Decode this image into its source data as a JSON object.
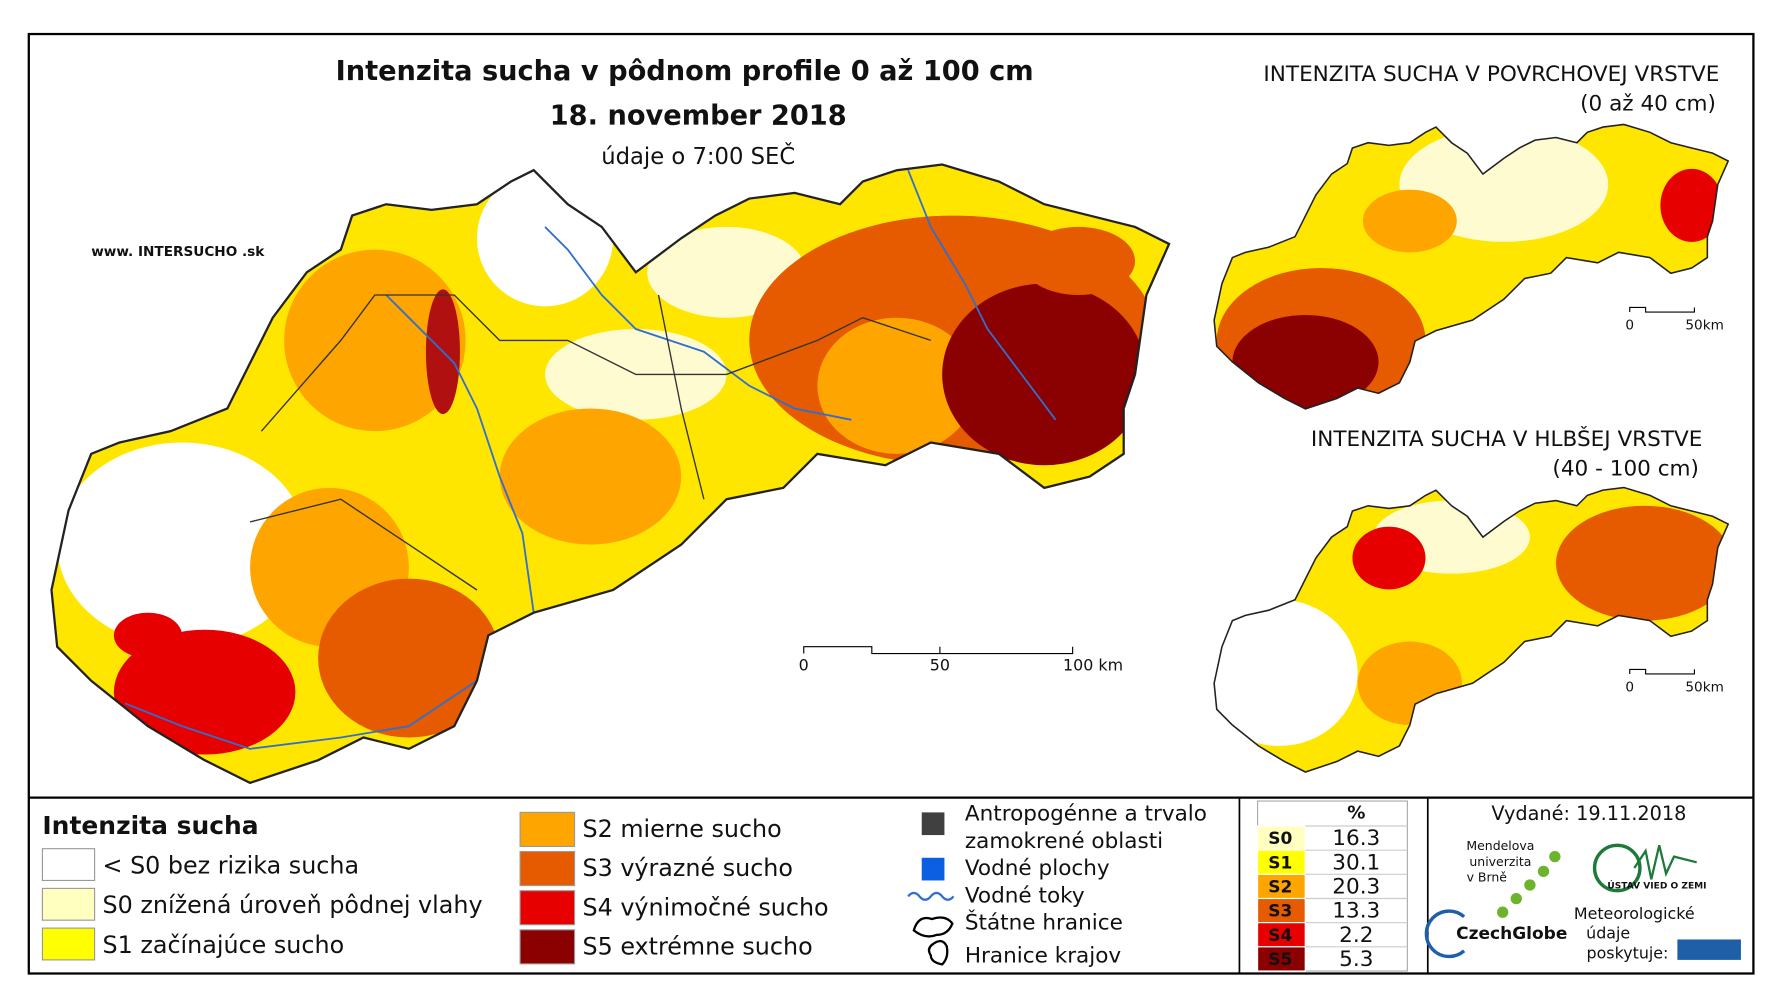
{
  "header": {
    "title": "Intenzita sucha v pôdnom profile 0 až 100 cm",
    "date": "18. november 2018",
    "time": "údaje o 7:00 SEČ"
  },
  "website": "www. INTERSUCHO .sk",
  "main_scale": [
    "0",
    "50",
    "100 km"
  ],
  "inset_surface": {
    "title": "INTENZITA SUCHA V POVRCHOVEJ VRSTVE",
    "subtitle": "(0 až 40 cm)",
    "scale": [
      "0",
      "50km"
    ]
  },
  "inset_deep": {
    "title": "INTENZITA SUCHA V HLBŠEJ VRSTVE",
    "subtitle": "(40 - 100 cm)",
    "scale": [
      "0",
      "50km"
    ]
  },
  "legend": {
    "title": "Intenzita sucha",
    "classes": [
      {
        "label": "< S0 bez rizika sucha",
        "color": "#ffffff"
      },
      {
        "label": "S0 znížená úroveň pôdnej vlahy",
        "color": "#ffffc0"
      },
      {
        "label": "S1 začínajúce sucho",
        "color": "#ffff00"
      },
      {
        "label": "S2 mierne sucho",
        "color": "#ffa500"
      },
      {
        "label": "S3 výrazné sucho",
        "color": "#e65a00"
      },
      {
        "label": "S4 výnimočné sucho",
        "color": "#e60000"
      },
      {
        "label": "S5 extrémne sucho",
        "color": "#8b0000"
      }
    ],
    "other": [
      {
        "lines": [
          "Antropogénne a trvalo",
          "zamokrené oblasti"
        ]
      },
      {
        "lines": [
          "Vodné plochy"
        ]
      },
      {
        "lines": [
          "Vodné toky"
        ]
      },
      {
        "lines": [
          "Štátne hranice"
        ]
      },
      {
        "lines": [
          "Hranice krajov"
        ]
      }
    ]
  },
  "stats": {
    "header": "%",
    "rows": [
      {
        "code": "S0",
        "percent": 16.3,
        "color": "#ffffc0"
      },
      {
        "code": "S1",
        "percent": 30.1,
        "color": "#ffff00"
      },
      {
        "code": "S2",
        "percent": 20.3,
        "color": "#ffa500"
      },
      {
        "code": "S3",
        "percent": 13.3,
        "color": "#e65a00"
      },
      {
        "code": "S4",
        "percent": 2.2,
        "color": "#e60000"
      },
      {
        "code": "S5",
        "percent": 5.3,
        "color": "#8b0000"
      }
    ]
  },
  "issued": "Vydané: 19.11.2018",
  "logos": {
    "mendel": [
      "Mendelova",
      "univerzita",
      "v Brně"
    ],
    "czechglobe": "CzechGlobe",
    "ustav": "ÚSTAV VIED O ZEMI",
    "meteo": [
      "Meteorologické",
      "údaje",
      "poskytuje:"
    ]
  }
}
